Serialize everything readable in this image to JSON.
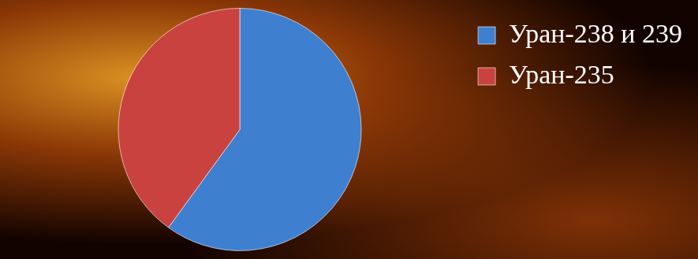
{
  "chart_data": {
    "type": "pie",
    "categories": [
      "Уран-238 и 239",
      "Уран-235"
    ],
    "values": [
      60,
      40
    ],
    "colors": [
      "#3f7fd0",
      "#c9423f"
    ],
    "legend": "right"
  }
}
